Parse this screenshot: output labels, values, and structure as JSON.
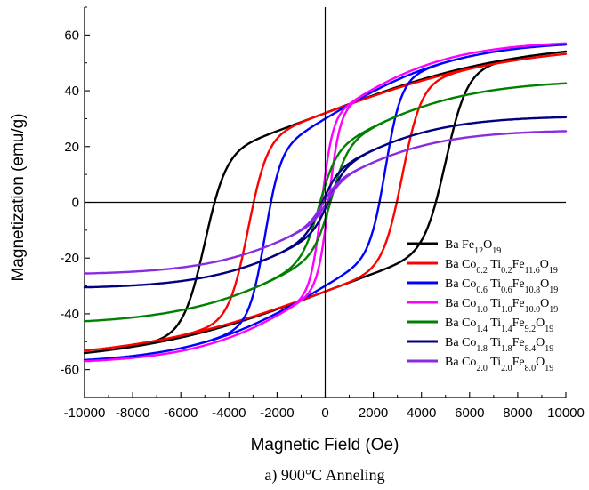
{
  "caption": "a) 900°C Anneling",
  "chart_data": {
    "type": "line",
    "title": "",
    "xlabel": "Magnetic Field (Oe)",
    "ylabel": "Magnetization (emu/g)",
    "xlim": [
      -10000,
      10000
    ],
    "ylim": [
      -70,
      70
    ],
    "xticks": [
      -10000,
      -8000,
      -6000,
      -4000,
      -2000,
      0,
      2000,
      4000,
      6000,
      8000,
      10000
    ],
    "yticks": [
      -60,
      -40,
      -20,
      0,
      20,
      40,
      60
    ],
    "xtick_labels": [
      "-10000",
      "-8000",
      "-6000",
      "-4000",
      "-2000",
      "0",
      "2000",
      "4000",
      "6000",
      "8000",
      "10000"
    ],
    "ytick_labels": [
      "-60",
      "-40",
      "-20",
      "0",
      "20",
      "40",
      "60"
    ],
    "grid": false,
    "legend_position": "bottom-right",
    "series": [
      {
        "legend": [
          {
            "t": "Ba Fe"
          },
          {
            "t": "12",
            "sub": true
          },
          {
            "t": "O"
          },
          {
            "t": "19",
            "sub": true
          }
        ],
        "color": "#000000",
        "params": {
          "Ms": 58,
          "Mr": 32,
          "Hc": 5000,
          "w": 900,
          "s": 8000
        }
      },
      {
        "legend": [
          {
            "t": "Ba Co"
          },
          {
            "t": "0.2",
            "sub": true
          },
          {
            "t": " Ti"
          },
          {
            "t": "0.2",
            "sub": true
          },
          {
            "t": "Fe"
          },
          {
            "t": "11.6",
            "sub": true
          },
          {
            "t": "O"
          },
          {
            "t": "19",
            "sub": true
          }
        ],
        "color": "#ff0000",
        "params": {
          "Ms": 57,
          "Mr": 32,
          "Hc": 3200,
          "w": 800,
          "s": 8000
        }
      },
      {
        "legend": [
          {
            "t": "Ba Co"
          },
          {
            "t": "0.6",
            "sub": true
          },
          {
            "t": " Ti"
          },
          {
            "t": "0.6",
            "sub": true
          },
          {
            "t": "Fe"
          },
          {
            "t": "10.8",
            "sub": true
          },
          {
            "t": "O"
          },
          {
            "t": "19",
            "sub": true
          }
        ],
        "color": "#0000ff",
        "params": {
          "Ms": 58,
          "Mr": 30,
          "Hc": 2500,
          "w": 650,
          "s": 5500
        }
      },
      {
        "legend": [
          {
            "t": "Ba Co"
          },
          {
            "t": "1.0",
            "sub": true
          },
          {
            "t": " Ti"
          },
          {
            "t": "1.0",
            "sub": true
          },
          {
            "t": "Fe"
          },
          {
            "t": "10.0",
            "sub": true
          },
          {
            "t": "O"
          },
          {
            "t": "19",
            "sub": true
          }
        ],
        "color": "#ff00ff",
        "params": {
          "Ms": 58,
          "Mr": 30,
          "Hc": 150,
          "w": 450,
          "s": 5000
        }
      },
      {
        "legend": [
          {
            "t": "Ba Co"
          },
          {
            "t": "1.4",
            "sub": true
          },
          {
            "t": " Ti"
          },
          {
            "t": "1.4",
            "sub": true
          },
          {
            "t": "Fe"
          },
          {
            "t": "9.2",
            "sub": true
          },
          {
            "t": "O"
          },
          {
            "t": "19",
            "sub": true
          }
        ],
        "color": "#008000",
        "params": {
          "Ms": 44,
          "Mr": 18,
          "Hc": 250,
          "w": 700,
          "s": 5500
        }
      },
      {
        "legend": [
          {
            "t": "Ba Co"
          },
          {
            "t": "1.8",
            "sub": true
          },
          {
            "t": " Ti"
          },
          {
            "t": "1.8",
            "sub": true
          },
          {
            "t": "Fe"
          },
          {
            "t": "8.4",
            "sub": true
          },
          {
            "t": "O"
          },
          {
            "t": "19",
            "sub": true
          }
        ],
        "color": "#000080",
        "params": {
          "Ms": 31,
          "Mr": 10,
          "Hc": 150,
          "w": 650,
          "s": 4500
        }
      },
      {
        "legend": [
          {
            "t": "Ba Co"
          },
          {
            "t": "2.0",
            "sub": true
          },
          {
            "t": " Ti"
          },
          {
            "t": "2.0",
            "sub": true
          },
          {
            "t": "Fe"
          },
          {
            "t": "8.0",
            "sub": true
          },
          {
            "t": "O"
          },
          {
            "t": "19",
            "sub": true
          }
        ],
        "color": "#8a2be2",
        "params": {
          "Ms": 26,
          "Mr": 6,
          "Hc": 100,
          "w": 600,
          "s": 4500
        }
      }
    ]
  }
}
